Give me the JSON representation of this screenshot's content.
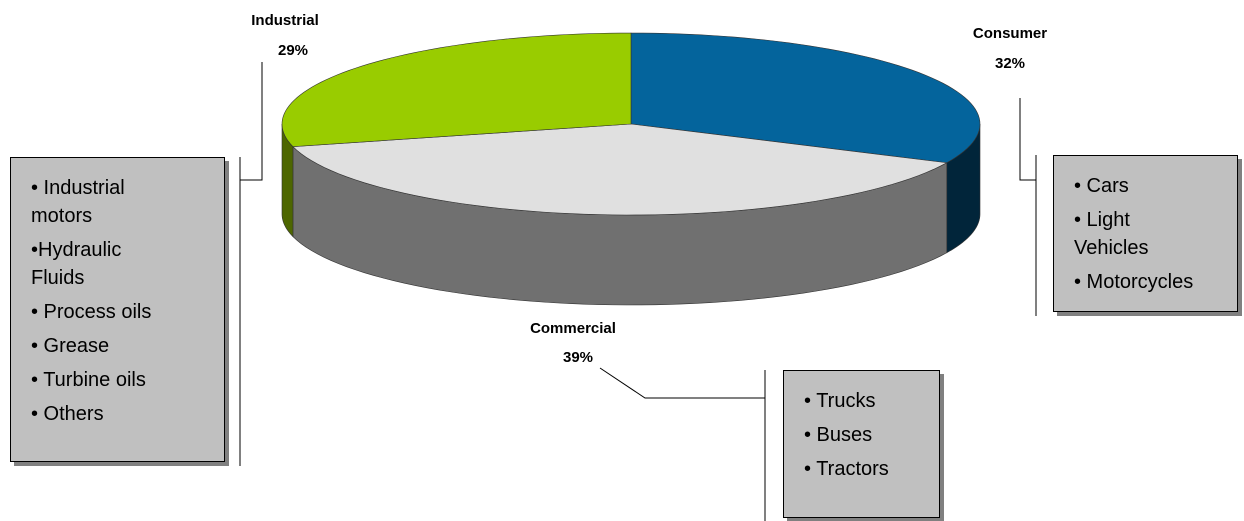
{
  "chart_data": {
    "type": "pie3d",
    "categories": [
      "Consumer",
      "Commercial",
      "Industrial"
    ],
    "values": [
      32,
      39,
      29
    ],
    "value_labels": [
      "32%",
      "39%",
      "29%"
    ],
    "colors": [
      "#04649c",
      "#e0e0e0",
      "#99cc00"
    ],
    "details": [
      [
        "• Cars",
        "• Light Vehicles",
        "• Motorcycles"
      ],
      [
        "• Trucks",
        "• Buses",
        "• Tractors"
      ],
      [
        "• Industrial motors",
        "•Hydraulic Fluids",
        "• Process oils",
        "• Grease",
        "• Turbine oils",
        "• Others"
      ]
    ]
  }
}
